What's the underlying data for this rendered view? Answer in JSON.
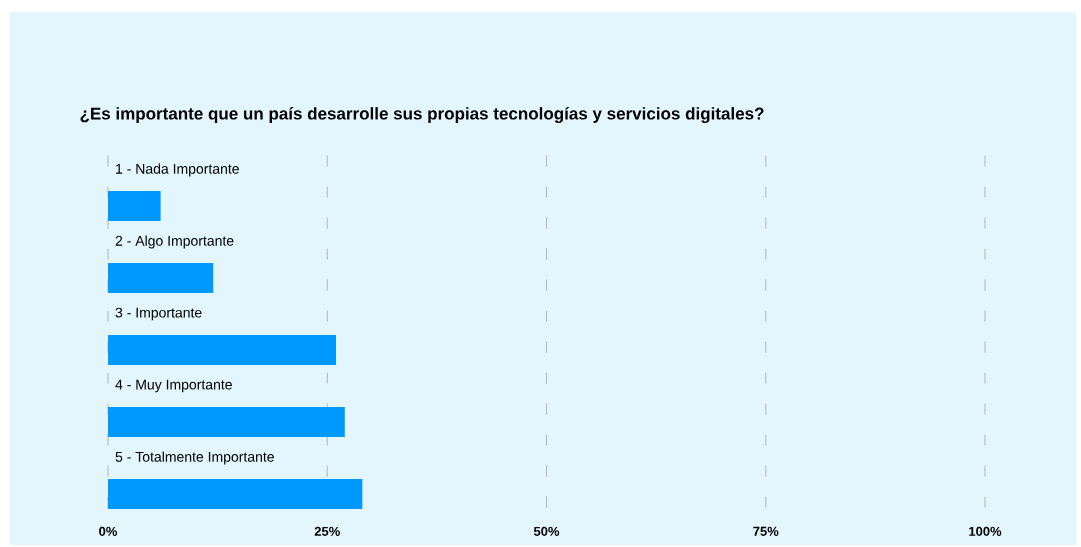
{
  "chart_data": {
    "type": "bar",
    "orientation": "horizontal",
    "title": "¿Es importante que un país desarrolle sus propias tecnologías y servicios digitales?",
    "categories": [
      "1 - Nada Importante",
      "2 - Algo Importante",
      "3 - Importante",
      "4 - Muy Importante",
      "5 - Totalmente Importante"
    ],
    "values": [
      6,
      12,
      26,
      27,
      29
    ],
    "color": "#0099ff",
    "xlim": [
      0,
      100
    ],
    "xticks": [
      {
        "value": 0,
        "label": "0%"
      },
      {
        "value": 25,
        "label": "25%"
      },
      {
        "value": 50,
        "label": "50%"
      },
      {
        "value": 75,
        "label": "75%"
      },
      {
        "value": 100,
        "label": "100%"
      }
    ],
    "grid": "x"
  }
}
